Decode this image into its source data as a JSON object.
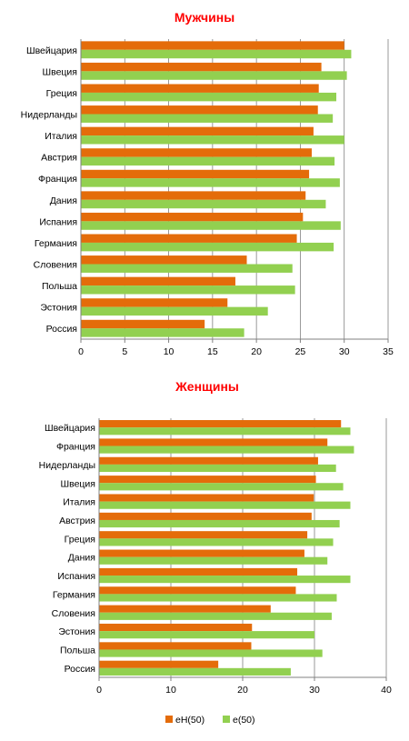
{
  "colors": {
    "title": "#ff0000",
    "eH50": "#e46c0a",
    "e50": "#92d050",
    "grid": "#000000"
  },
  "legend": {
    "items": [
      {
        "label": "eH(50)",
        "series": 0
      },
      {
        "label": "e(50)",
        "series": 1
      }
    ]
  },
  "chart_data": [
    {
      "type": "bar",
      "orientation": "horizontal",
      "title": "Мужчины",
      "categories": [
        "Швейцария",
        "Швеция",
        "Греция",
        "Нидерланды",
        "Италия",
        "Австрия",
        "Франция",
        "Дания",
        "Испания",
        "Германия",
        "Словения",
        "Польша",
        "Эстония",
        "Россия"
      ],
      "series": [
        {
          "name": "eH(50)",
          "values": [
            30.0,
            27.4,
            27.1,
            27.0,
            26.5,
            26.3,
            26.0,
            25.6,
            25.3,
            24.6,
            18.9,
            17.6,
            16.7,
            14.1
          ]
        },
        {
          "name": "e(50)",
          "values": [
            30.8,
            30.3,
            29.1,
            28.7,
            30.0,
            28.9,
            29.5,
            27.9,
            29.6,
            28.8,
            24.1,
            24.4,
            21.3,
            18.6
          ]
        }
      ],
      "xlim": [
        0,
        35
      ],
      "xticks": [
        0,
        5,
        10,
        15,
        20,
        25,
        30,
        35
      ],
      "grid": true,
      "legend": "none"
    },
    {
      "type": "bar",
      "orientation": "horizontal",
      "title": "Женщины",
      "categories": [
        "Швейцария",
        "Франция",
        "Нидерланды",
        "Швеция",
        "Италия",
        "Австрия",
        "Греция",
        "Дания",
        "Испания",
        "Германия",
        "Словения",
        "Эстония",
        "Польша",
        "Россия"
      ],
      "series": [
        {
          "name": "eH(50)",
          "values": [
            33.7,
            31.8,
            30.5,
            30.2,
            29.9,
            29.6,
            29.0,
            28.6,
            27.6,
            27.4,
            23.9,
            21.3,
            21.2,
            16.6
          ]
        },
        {
          "name": "e(50)",
          "values": [
            35.0,
            35.5,
            33.0,
            34.0,
            35.0,
            33.5,
            32.6,
            31.8,
            35.0,
            33.1,
            32.4,
            30.0,
            31.1,
            26.7
          ]
        }
      ],
      "xlim": [
        0,
        40
      ],
      "xticks": [
        0,
        10,
        20,
        30,
        40
      ],
      "grid": true,
      "legend": "bottom"
    }
  ]
}
